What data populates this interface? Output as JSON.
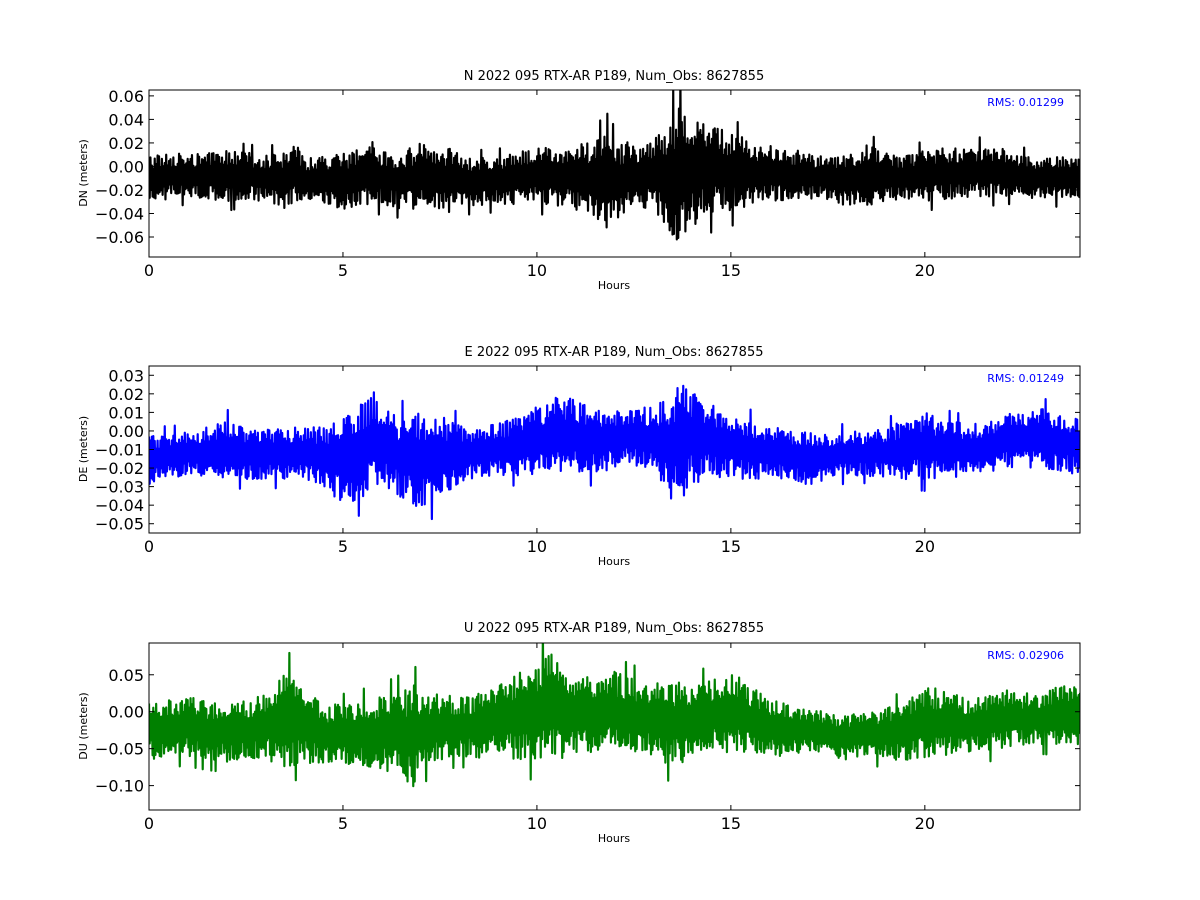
{
  "chart_data": [
    {
      "type": "line",
      "title": "N 2022 095 RTX-AR  P189, Num_Obs: 8627855",
      "xlabel": "Hours",
      "ylabel": "DN (meters)",
      "xlim": [
        0,
        24
      ],
      "ylim": [
        -0.077,
        0.065
      ],
      "xticks": [
        0,
        5,
        10,
        15,
        20
      ],
      "yticks": [
        -0.06,
        -0.04,
        -0.02,
        0.0,
        0.02,
        0.04,
        0.06
      ],
      "ytick_labels": [
        "−0.06",
        "−0.04",
        "−0.02",
        "0.00",
        "0.02",
        "0.04",
        "0.06"
      ],
      "color": "#000000",
      "rms_label": "RMS:  0.01299",
      "rms_color": "#0000ff",
      "grid": false,
      "series": [
        {
          "x": [
            0,
            0.5,
            1,
            1.5,
            2,
            2.5,
            3,
            3.5,
            3.7,
            4,
            4.5,
            5,
            5.5,
            5.8,
            6,
            6.5,
            7,
            7.3,
            7.8,
            8,
            8.5,
            9,
            9.5,
            10,
            10.5,
            11,
            11.5,
            11.8,
            12,
            12.5,
            13,
            13.3,
            13.7,
            14,
            14.5,
            15,
            15.5,
            16,
            16.5,
            17,
            17.5,
            18,
            18.5,
            19,
            19.5,
            20,
            20.5,
            21,
            21.5,
            22,
            22.5,
            23,
            23.5,
            24
          ],
          "mid": [
            -0.01,
            -0.008,
            -0.008,
            -0.009,
            -0.008,
            -0.008,
            -0.01,
            -0.012,
            -0.005,
            -0.012,
            -0.013,
            -0.012,
            -0.01,
            -0.005,
            -0.01,
            -0.012,
            -0.008,
            -0.008,
            -0.012,
            -0.012,
            -0.013,
            -0.012,
            -0.01,
            -0.008,
            -0.007,
            -0.01,
            -0.012,
            -0.015,
            -0.012,
            -0.008,
            -0.005,
            -0.01,
            -0.005,
            -0.002,
            -0.002,
            -0.005,
            -0.006,
            -0.006,
            -0.007,
            -0.008,
            -0.01,
            -0.012,
            -0.008,
            -0.008,
            -0.01,
            -0.008,
            -0.006,
            -0.005,
            -0.005,
            -0.005,
            -0.008,
            -0.01,
            -0.01,
            -0.01
          ],
          "amp": [
            0.02,
            0.02,
            0.018,
            0.02,
            0.022,
            0.02,
            0.02,
            0.024,
            0.026,
            0.022,
            0.022,
            0.024,
            0.026,
            0.028,
            0.022,
            0.024,
            0.028,
            0.026,
            0.028,
            0.022,
            0.02,
            0.02,
            0.022,
            0.024,
            0.026,
            0.028,
            0.034,
            0.045,
            0.034,
            0.028,
            0.03,
            0.045,
            0.06,
            0.05,
            0.04,
            0.034,
            0.028,
            0.024,
            0.022,
            0.02,
            0.018,
            0.022,
            0.026,
            0.022,
            0.02,
            0.022,
            0.022,
            0.022,
            0.022,
            0.02,
            0.018,
            0.018,
            0.018,
            0.018
          ]
        }
      ]
    },
    {
      "type": "line",
      "title": "E 2022 095 RTX-AR  P189, Num_Obs: 8627855",
      "xlabel": "Hours",
      "ylabel": "DE (meters)",
      "xlim": [
        0,
        24
      ],
      "ylim": [
        -0.055,
        0.035
      ],
      "xticks": [
        0,
        5,
        10,
        15,
        20
      ],
      "yticks": [
        -0.05,
        -0.04,
        -0.03,
        -0.02,
        -0.01,
        0.0,
        0.01,
        0.02,
        0.03
      ],
      "ytick_labels": [
        "−0.05",
        "−0.04",
        "−0.03",
        "−0.02",
        "−0.01",
        "0.00",
        "0.01",
        "0.02",
        "0.03"
      ],
      "color": "#0000ff",
      "rms_label": "RMS:  0.01249",
      "rms_color": "#0000ff",
      "grid": false,
      "series": [
        {
          "x": [
            0,
            0.5,
            1,
            1.5,
            2,
            2.5,
            3,
            3.5,
            4,
            4.5,
            5,
            5.5,
            5.8,
            6,
            6.5,
            7,
            7.5,
            8,
            8.5,
            9,
            9.5,
            10,
            10.5,
            11,
            11.5,
            12,
            12.5,
            13,
            13.5,
            13.7,
            14,
            14.5,
            15,
            15.5,
            16,
            16.5,
            17,
            17.5,
            18,
            18.5,
            19,
            19.5,
            20,
            20.5,
            21,
            21.5,
            22,
            22.5,
            23,
            23.5,
            24
          ],
          "mid": [
            -0.015,
            -0.014,
            -0.012,
            -0.012,
            -0.01,
            -0.012,
            -0.012,
            -0.012,
            -0.012,
            -0.014,
            -0.016,
            -0.01,
            -0.005,
            -0.008,
            -0.014,
            -0.015,
            -0.014,
            -0.012,
            -0.012,
            -0.01,
            -0.008,
            -0.005,
            -0.003,
            -0.003,
            -0.005,
            -0.004,
            -0.002,
            -0.005,
            -0.008,
            -0.005,
            -0.003,
            -0.005,
            -0.008,
            -0.01,
            -0.012,
            -0.013,
            -0.015,
            -0.014,
            -0.012,
            -0.012,
            -0.012,
            -0.01,
            -0.008,
            -0.01,
            -0.01,
            -0.01,
            -0.006,
            -0.004,
            -0.004,
            -0.006,
            -0.008
          ],
          "amp": [
            0.014,
            0.012,
            0.012,
            0.014,
            0.016,
            0.014,
            0.014,
            0.014,
            0.014,
            0.016,
            0.024,
            0.026,
            0.026,
            0.02,
            0.022,
            0.028,
            0.022,
            0.016,
            0.014,
            0.014,
            0.016,
            0.018,
            0.022,
            0.02,
            0.018,
            0.016,
            0.016,
            0.018,
            0.03,
            0.034,
            0.026,
            0.02,
            0.018,
            0.016,
            0.014,
            0.014,
            0.014,
            0.012,
            0.012,
            0.012,
            0.014,
            0.016,
            0.018,
            0.016,
            0.014,
            0.014,
            0.014,
            0.016,
            0.016,
            0.016,
            0.016
          ]
        }
      ]
    },
    {
      "type": "line",
      "title": "U 2022 095 RTX-AR  P189, Num_Obs: 8627855",
      "xlabel": "Hours",
      "ylabel": "DU (meters)",
      "xlim": [
        0,
        24
      ],
      "ylim": [
        -0.133,
        0.093
      ],
      "xticks": [
        0,
        5,
        10,
        15,
        20
      ],
      "yticks": [
        -0.1,
        -0.05,
        0.0,
        0.05
      ],
      "ytick_labels": [
        "−0.10",
        "−0.05",
        "0.00",
        "0.05"
      ],
      "color": "#008000",
      "rms_label": "RMS:  0.02906",
      "rms_color": "#0000ff",
      "grid": false,
      "series": [
        {
          "x": [
            0,
            0.5,
            1,
            1.5,
            2,
            2.5,
            3,
            3.5,
            4,
            4.5,
            5,
            5.5,
            6,
            6.5,
            6.8,
            7,
            7.5,
            8,
            8.5,
            9,
            9.5,
            10,
            10.3,
            10.5,
            11,
            11.5,
            12,
            12.5,
            13,
            13.5,
            14,
            14.5,
            15,
            15.5,
            16,
            16.5,
            17,
            17.5,
            18,
            18.5,
            19,
            19.5,
            20,
            20.5,
            21,
            21.5,
            22,
            22.5,
            23,
            23.5,
            24
          ],
          "mid": [
            -0.025,
            -0.02,
            -0.02,
            -0.025,
            -0.028,
            -0.025,
            -0.02,
            -0.005,
            -0.02,
            -0.03,
            -0.03,
            -0.03,
            -0.03,
            -0.03,
            -0.035,
            -0.025,
            -0.02,
            -0.02,
            -0.02,
            -0.01,
            -0.005,
            0.0,
            0.01,
            0.005,
            -0.005,
            -0.005,
            0.0,
            -0.005,
            -0.01,
            -0.015,
            -0.015,
            -0.005,
            0.0,
            -0.01,
            -0.02,
            -0.025,
            -0.025,
            -0.03,
            -0.035,
            -0.03,
            -0.03,
            -0.025,
            -0.015,
            -0.015,
            -0.02,
            -0.015,
            -0.01,
            -0.01,
            -0.01,
            -0.005,
            -0.005
          ],
          "amp": [
            0.04,
            0.04,
            0.04,
            0.04,
            0.04,
            0.04,
            0.045,
            0.07,
            0.05,
            0.04,
            0.04,
            0.045,
            0.05,
            0.06,
            0.075,
            0.055,
            0.045,
            0.04,
            0.045,
            0.05,
            0.06,
            0.07,
            0.08,
            0.075,
            0.055,
            0.05,
            0.055,
            0.05,
            0.055,
            0.06,
            0.05,
            0.05,
            0.055,
            0.045,
            0.04,
            0.035,
            0.03,
            0.03,
            0.03,
            0.03,
            0.035,
            0.04,
            0.05,
            0.045,
            0.04,
            0.04,
            0.04,
            0.035,
            0.035,
            0.04,
            0.04
          ]
        }
      ]
    }
  ]
}
